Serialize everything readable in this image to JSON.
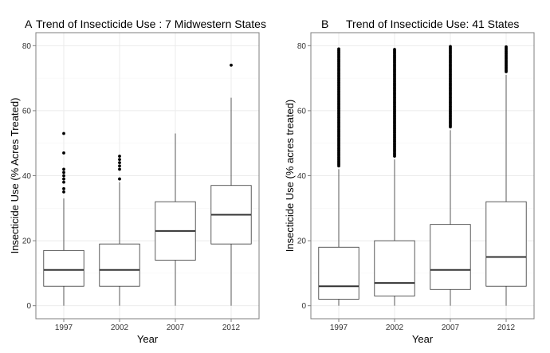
{
  "figure": {
    "background": "#ffffff"
  },
  "style": {
    "panel_border": "#7f7f7f",
    "grid_major": "#ebebeb",
    "grid_minor": "#f5f5f5",
    "box_stroke": "#333333",
    "median_stroke": "#333333",
    "outlier_fill": "#000000",
    "text": "#000000",
    "tick_text": "#333333"
  },
  "chart_data": [
    {
      "type": "boxplot",
      "tag": "A",
      "title": "Trend of Insecticide Use : 7 Midwestern States",
      "xlabel": "Year",
      "ylabel": "Insecticide Use (% Acres Treated)",
      "categories": [
        "1997",
        "2002",
        "2007",
        "2012"
      ],
      "y_ticks": [
        0,
        20,
        40,
        60,
        80
      ],
      "ylim": [
        -4,
        84
      ],
      "grid": true,
      "boxes": [
        {
          "category": "1997",
          "min": 0,
          "q1": 6,
          "median": 11,
          "q3": 17,
          "max": 33,
          "outliers": [
            35,
            36,
            38,
            39,
            40,
            41,
            42,
            47,
            53
          ]
        },
        {
          "category": "2002",
          "min": 0,
          "q1": 6,
          "median": 11,
          "q3": 19,
          "max": 38,
          "outliers": [
            39,
            42,
            43,
            44,
            45,
            46
          ]
        },
        {
          "category": "2007",
          "min": 0,
          "q1": 14,
          "median": 23,
          "q3": 32,
          "max": 53,
          "outliers": []
        },
        {
          "category": "2012",
          "min": 0,
          "q1": 19,
          "median": 28,
          "q3": 37,
          "max": 64,
          "outliers": [
            74
          ]
        }
      ]
    },
    {
      "type": "boxplot",
      "tag": "B",
      "title": "Trend of Insecticide Use: 41 States",
      "xlabel": "Year",
      "ylabel": "Insecticide Use (% acres treated)",
      "categories": [
        "1997",
        "2002",
        "2007",
        "2012"
      ],
      "y_ticks": [
        0,
        20,
        40,
        60,
        80
      ],
      "ylim": [
        -4,
        84
      ],
      "grid": true,
      "boxes": [
        {
          "category": "1997",
          "min": 0,
          "q1": 2,
          "median": 6,
          "q3": 18,
          "max": 42,
          "outlier_range": [
            43,
            79
          ]
        },
        {
          "category": "2002",
          "min": 0,
          "q1": 3,
          "median": 7,
          "q3": 20,
          "max": 45,
          "outlier_range": [
            46,
            79
          ]
        },
        {
          "category": "2007",
          "min": 0,
          "q1": 5,
          "median": 11,
          "q3": 25,
          "max": 54,
          "outlier_range": [
            55,
            80
          ]
        },
        {
          "category": "2012",
          "min": 0,
          "q1": 6,
          "median": 15,
          "q3": 32,
          "max": 71,
          "outlier_range": [
            72,
            80
          ]
        }
      ]
    }
  ]
}
